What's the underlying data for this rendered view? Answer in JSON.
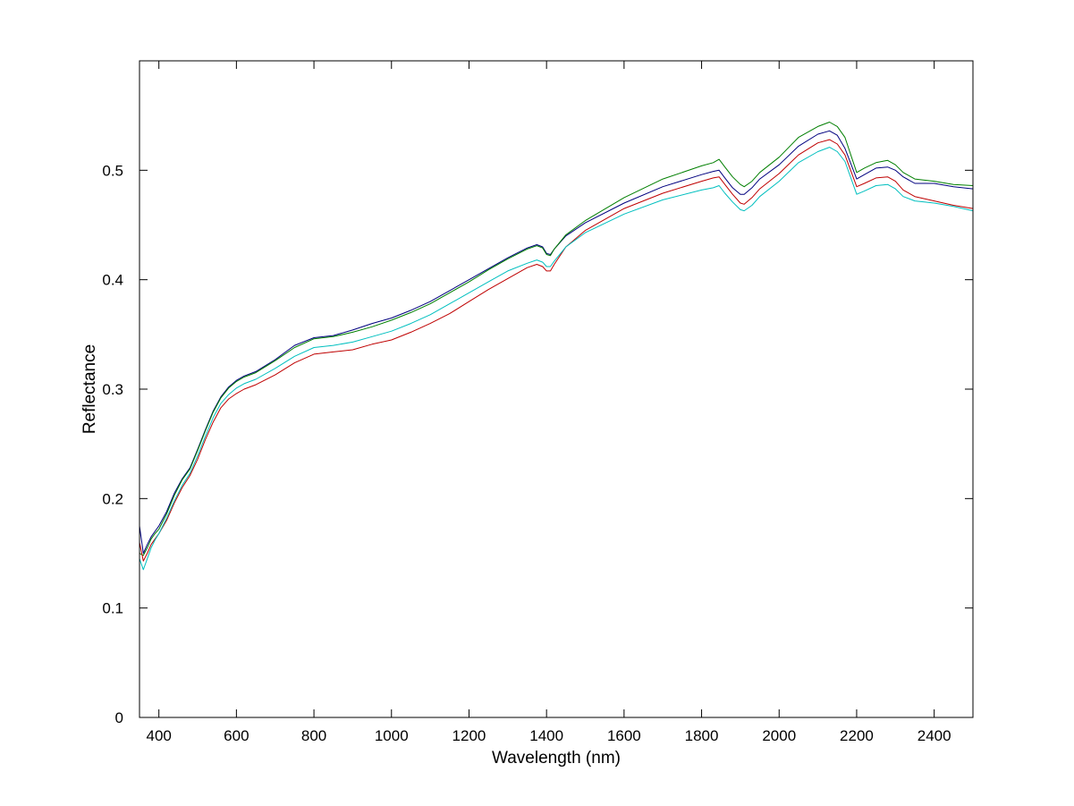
{
  "chart_data": {
    "type": "line",
    "title": "",
    "xlabel": "Wavelength (nm)",
    "ylabel": "Reflectance",
    "xlim": [
      350,
      2500
    ],
    "ylim": [
      0,
      0.6
    ],
    "xticks": [
      400,
      600,
      800,
      1000,
      1200,
      1400,
      1600,
      1800,
      2000,
      2200,
      2400
    ],
    "yticks": [
      0,
      0.1,
      0.2,
      0.3,
      0.4,
      0.5
    ],
    "ytick_labels": [
      "0",
      "0.1",
      "0.2",
      "0.3",
      "0.4",
      "0.5"
    ],
    "grid": false,
    "legend": "none",
    "x": [
      350,
      360,
      370,
      380,
      390,
      400,
      420,
      440,
      460,
      480,
      500,
      520,
      540,
      560,
      580,
      600,
      620,
      650,
      700,
      750,
      800,
      850,
      900,
      950,
      1000,
      1050,
      1100,
      1150,
      1200,
      1250,
      1300,
      1350,
      1375,
      1390,
      1400,
      1410,
      1420,
      1450,
      1500,
      1600,
      1700,
      1800,
      1830,
      1845,
      1860,
      1880,
      1900,
      1910,
      1930,
      1950,
      2000,
      2050,
      2100,
      2130,
      2150,
      2170,
      2200,
      2220,
      2250,
      2280,
      2300,
      2320,
      2350,
      2400,
      2450,
      2500
    ],
    "series": [
      {
        "color": "#00007f",
        "values": [
          0.175,
          0.15,
          0.158,
          0.165,
          0.17,
          0.175,
          0.188,
          0.205,
          0.218,
          0.228,
          0.245,
          0.263,
          0.28,
          0.293,
          0.302,
          0.308,
          0.312,
          0.316,
          0.327,
          0.34,
          0.347,
          0.349,
          0.354,
          0.36,
          0.365,
          0.372,
          0.38,
          0.39,
          0.4,
          0.41,
          0.42,
          0.429,
          0.432,
          0.43,
          0.424,
          0.423,
          0.428,
          0.44,
          0.452,
          0.47,
          0.485,
          0.496,
          0.499,
          0.5,
          0.493,
          0.484,
          0.478,
          0.478,
          0.484,
          0.492,
          0.505,
          0.522,
          0.533,
          0.536,
          0.532,
          0.52,
          0.492,
          0.496,
          0.502,
          0.503,
          0.5,
          0.494,
          0.488,
          0.488,
          0.485,
          0.483
        ]
      },
      {
        "color": "#007f00",
        "values": [
          0.15,
          0.148,
          0.155,
          0.163,
          0.168,
          0.172,
          0.186,
          0.203,
          0.217,
          0.227,
          0.244,
          0.262,
          0.279,
          0.292,
          0.301,
          0.307,
          0.311,
          0.315,
          0.326,
          0.338,
          0.346,
          0.348,
          0.352,
          0.357,
          0.363,
          0.37,
          0.378,
          0.388,
          0.398,
          0.409,
          0.419,
          0.428,
          0.431,
          0.429,
          0.423,
          0.422,
          0.428,
          0.441,
          0.454,
          0.475,
          0.492,
          0.504,
          0.507,
          0.51,
          0.503,
          0.494,
          0.487,
          0.485,
          0.49,
          0.498,
          0.512,
          0.53,
          0.54,
          0.544,
          0.54,
          0.53,
          0.498,
          0.502,
          0.507,
          0.509,
          0.505,
          0.498,
          0.492,
          0.49,
          0.487,
          0.486
        ]
      },
      {
        "color": "#bf0000",
        "values": [
          0.16,
          0.143,
          0.15,
          0.158,
          0.163,
          0.168,
          0.18,
          0.196,
          0.21,
          0.221,
          0.236,
          0.254,
          0.27,
          0.283,
          0.291,
          0.296,
          0.3,
          0.304,
          0.313,
          0.324,
          0.332,
          0.334,
          0.336,
          0.341,
          0.345,
          0.352,
          0.36,
          0.369,
          0.38,
          0.391,
          0.401,
          0.411,
          0.414,
          0.412,
          0.408,
          0.408,
          0.414,
          0.43,
          0.445,
          0.465,
          0.479,
          0.49,
          0.493,
          0.494,
          0.487,
          0.478,
          0.47,
          0.469,
          0.475,
          0.483,
          0.497,
          0.514,
          0.525,
          0.528,
          0.524,
          0.514,
          0.485,
          0.488,
          0.493,
          0.494,
          0.49,
          0.482,
          0.476,
          0.472,
          0.468,
          0.465
        ]
      },
      {
        "color": "#00bfbf",
        "values": [
          0.145,
          0.135,
          0.145,
          0.155,
          0.162,
          0.168,
          0.182,
          0.198,
          0.212,
          0.223,
          0.239,
          0.257,
          0.274,
          0.287,
          0.295,
          0.301,
          0.305,
          0.309,
          0.319,
          0.33,
          0.338,
          0.34,
          0.343,
          0.348,
          0.353,
          0.36,
          0.368,
          0.378,
          0.388,
          0.398,
          0.408,
          0.415,
          0.418,
          0.416,
          0.412,
          0.412,
          0.417,
          0.43,
          0.443,
          0.46,
          0.473,
          0.482,
          0.484,
          0.486,
          0.479,
          0.471,
          0.464,
          0.463,
          0.468,
          0.476,
          0.49,
          0.507,
          0.517,
          0.521,
          0.517,
          0.508,
          0.478,
          0.481,
          0.486,
          0.487,
          0.483,
          0.476,
          0.472,
          0.47,
          0.467,
          0.463
        ]
      }
    ]
  }
}
